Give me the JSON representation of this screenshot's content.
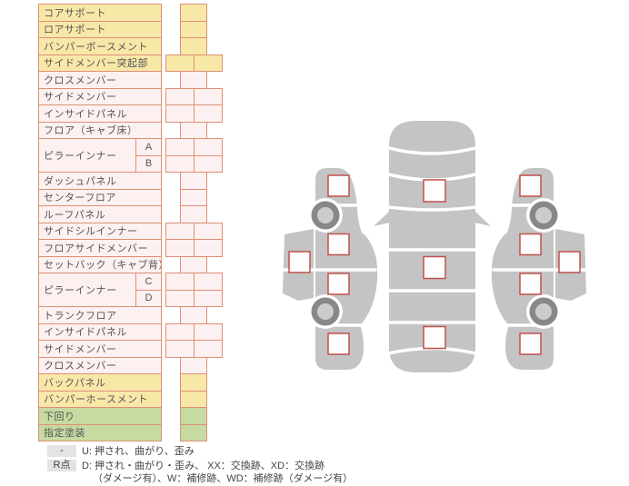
{
  "colors": {
    "yellow": "#f8e8a8",
    "pink": "#fdf0f0",
    "green": "#c7daa2",
    "border": "#dd9076",
    "text": "#555555",
    "sqb": "#c0504d",
    "gray": "#c4c4c4",
    "wdark": "#888888",
    "wlight": "#cccccc",
    "badge": "#e4e4e4"
  },
  "table": {
    "rows": [
      {
        "label": "コアサポート",
        "color": "yellow",
        "cell": "single"
      },
      {
        "label": "ロアサポート",
        "color": "yellow",
        "cell": "single"
      },
      {
        "label": "バンパーボースメント",
        "color": "yellow",
        "cell": "single"
      },
      {
        "label": "サイドメンバー突起部",
        "color": "yellow",
        "cell": "double"
      },
      {
        "label": "クロスメンバー",
        "color": "pink",
        "cell": "single"
      },
      {
        "label": "サイドメンバー",
        "color": "pink",
        "cell": "double"
      },
      {
        "label": "インサイドパネル",
        "color": "pink",
        "cell": "double"
      },
      {
        "label": "フロア（キャブ床）",
        "color": "pink",
        "cell": "single"
      },
      {
        "label": "ピラーインナー",
        "color": "pink",
        "subs": [
          {
            "label": "A",
            "cell": "double"
          },
          {
            "label": "B",
            "cell": "double"
          }
        ]
      },
      {
        "label": "ダッシュパネル",
        "color": "pink",
        "cell": "single"
      },
      {
        "label": "センターフロア",
        "color": "pink",
        "cell": "single"
      },
      {
        "label": "ルーフパネル",
        "color": "pink",
        "cell": "single"
      },
      {
        "label": "サイドシルインナー",
        "color": "pink",
        "cell": "double"
      },
      {
        "label": "フロアサイドメンバー",
        "color": "pink",
        "cell": "double"
      },
      {
        "label": "セットバック（キャブ背）",
        "color": "pink",
        "cell": "single"
      },
      {
        "label": "ピラーインナー",
        "color": "pink",
        "subs": [
          {
            "label": "C",
            "cell": "double"
          },
          {
            "label": "D",
            "cell": "double"
          }
        ]
      },
      {
        "label": "トランクフロア",
        "color": "pink",
        "cell": "single"
      },
      {
        "label": "インサイドパネル",
        "color": "pink",
        "cell": "double"
      },
      {
        "label": "サイドメンバー",
        "color": "pink",
        "cell": "double"
      },
      {
        "label": "クロスメンバー",
        "color": "pink",
        "cell": "single"
      },
      {
        "label": "バックパネル",
        "color": "yellow",
        "cell": "single"
      },
      {
        "label": "バンパーホースメント",
        "color": "yellow",
        "cell": "single"
      },
      {
        "label": "下回り",
        "color": "green",
        "cell": "single"
      },
      {
        "label": "指定塗装",
        "color": "green",
        "cell": "single"
      }
    ]
  },
  "legend": {
    "rows": [
      {
        "badge": "-",
        "lines": [
          "U: 押され、曲がり、歪み"
        ]
      },
      {
        "badge": "R点",
        "lines": [
          "D: 押され・曲がり・歪み、 XX：交換跡、XD：交換跡",
          "（ダメージ有）、W：補修跡、WD：補修跡（ダメージ有）"
        ]
      }
    ]
  },
  "diagram": {
    "top_view_markers": [
      "hood",
      "roof",
      "trunk"
    ],
    "left_side_markers": [
      "front-fender",
      "front-door",
      "side-sill",
      "rear-door",
      "rear-fender"
    ],
    "right_side_markers": [
      "front-fender",
      "front-door",
      "side-sill",
      "rear-door",
      "rear-fender"
    ]
  }
}
